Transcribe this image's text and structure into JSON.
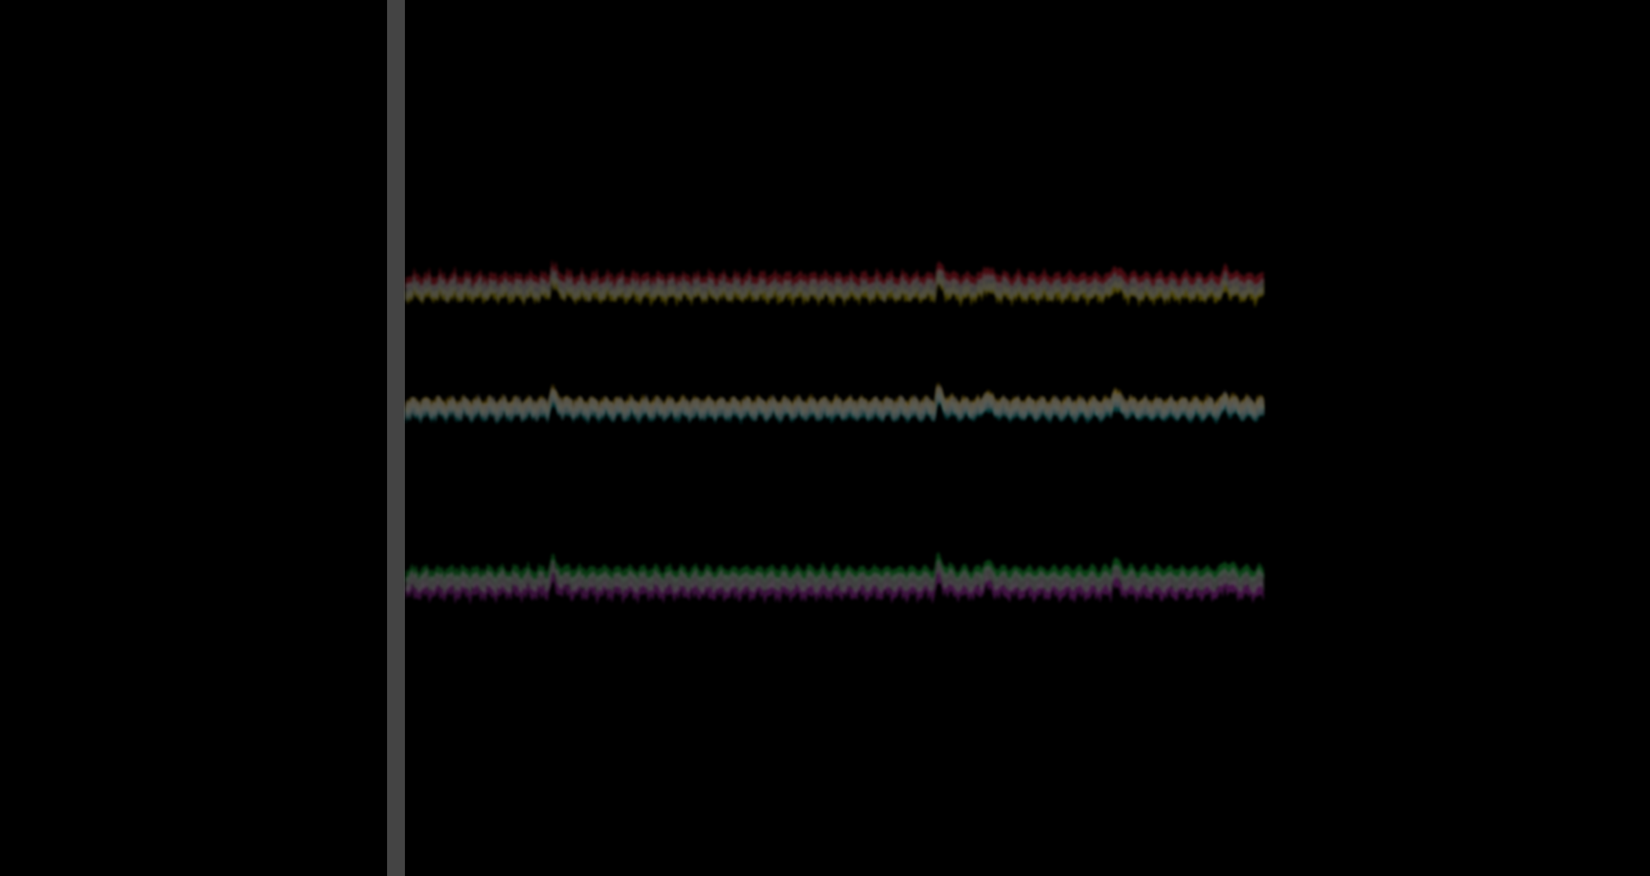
{
  "chart_data": {
    "type": "line",
    "x_start": 0,
    "x_end": 200,
    "note": "",
    "groups": [
      {
        "name": "",
        "series": [
          {
            "name": "",
            "color": "#ff2a3c",
            "offset": -13
          },
          {
            "name": "",
            "color": "#ffe400",
            "offset": 8
          }
        ]
      },
      {
        "name": "",
        "series": [
          {
            "name": "",
            "color": "#18c8c8",
            "offset": 7
          },
          {
            "name": "",
            "color": "#ffffff",
            "offset": -2
          },
          {
            "name": "",
            "color": "#d4a000",
            "offset": -6
          }
        ]
      },
      {
        "name": "",
        "series": [
          {
            "name": "",
            "color": "#22e04a",
            "offset": -12
          },
          {
            "name": "",
            "color": "#e040e8",
            "offset": 14
          }
        ]
      }
    ],
    "spikes": [
      {
        "x": 34,
        "magnitude": 22
      },
      {
        "x": 124,
        "magnitude": 24
      },
      {
        "x": 135,
        "magnitude": 18
      },
      {
        "x": 165,
        "magnitude": 20
      },
      {
        "x": 191,
        "magnitude": 14
      }
    ]
  },
  "colors": {
    "background": "#000000",
    "axis_bar": "#444444",
    "gray_trace": "#555555"
  }
}
